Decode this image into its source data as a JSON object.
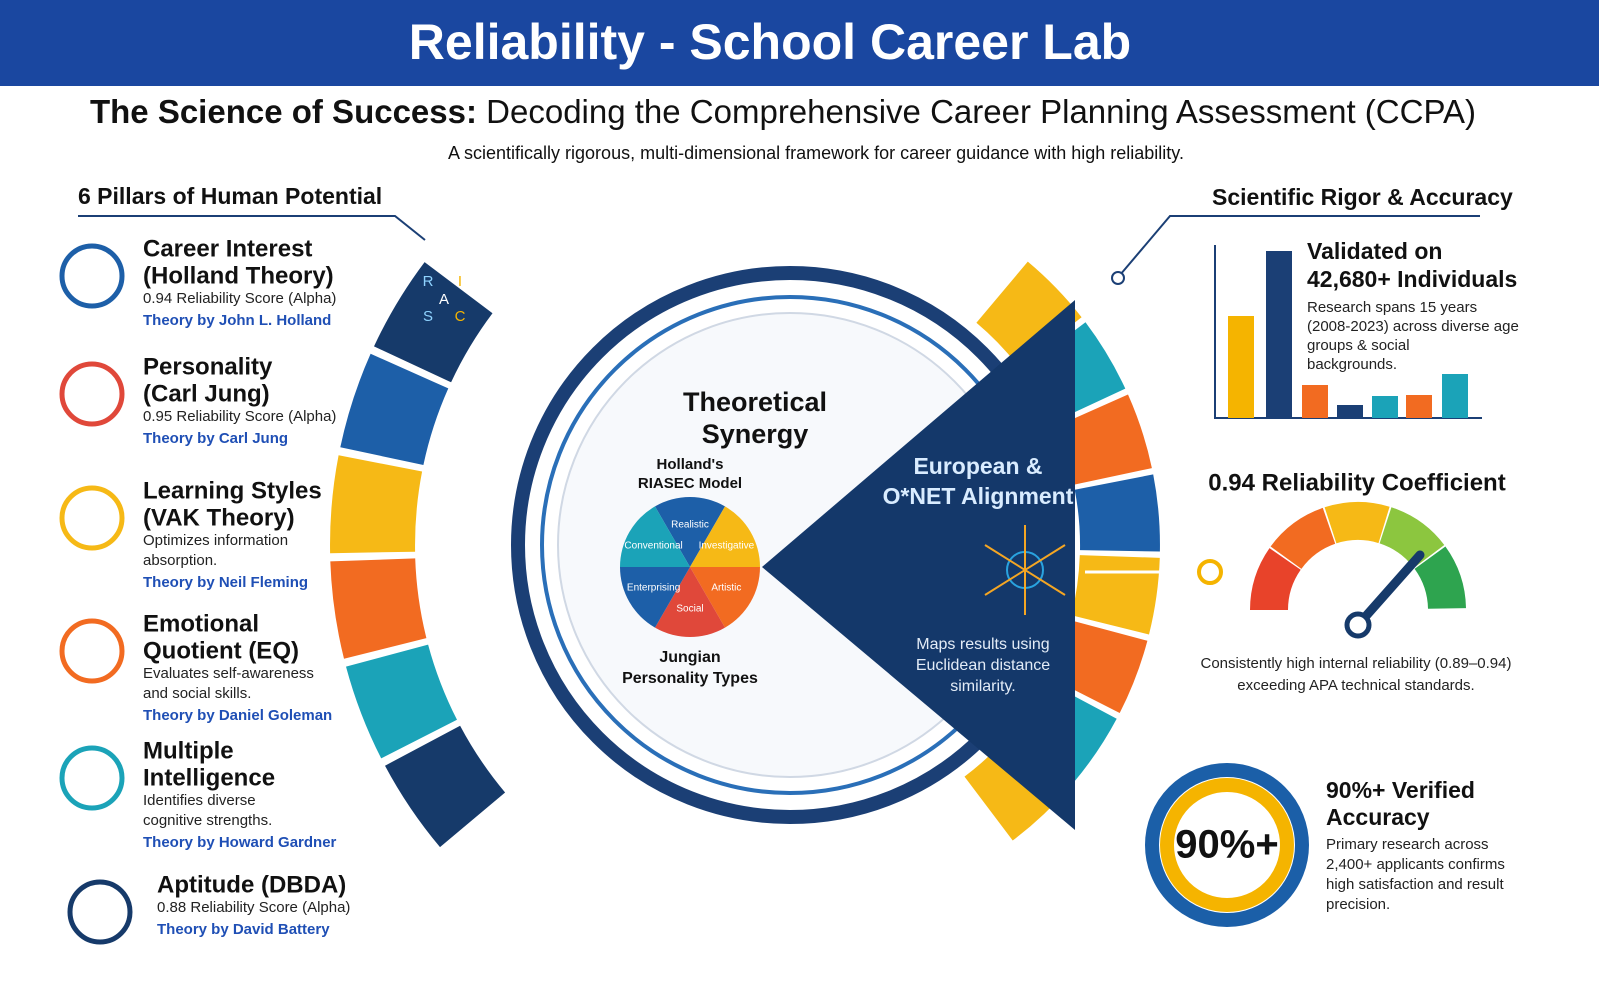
{
  "header": {
    "title": "Reliability - School Career Lab",
    "subtitle_bold": "The Science of Success:",
    "subtitle_rest": "Decoding the Comprehensive Career Planning Assessment (CCPA)",
    "tagline": "A scientifically rigorous, multi-dimensional framework for career guidance with high reliability."
  },
  "pillars": {
    "heading": "6 Pillars of Human Potential",
    "icon_letters": [
      "R",
      "I",
      "A",
      "S",
      "C"
    ],
    "items": [
      {
        "title": [
          "Career Interest",
          "(Holland Theory)"
        ],
        "detail": [
          "0.94 Reliability Score (Alpha)"
        ],
        "theory": "Theory by John L. Holland"
      },
      {
        "title": [
          "Personality",
          "(Carl Jung)"
        ],
        "detail": [
          "0.95 Reliability Score (Alpha)"
        ],
        "theory": "Theory by Carl Jung"
      },
      {
        "title": [
          "Learning Styles",
          "(VAK Theory)"
        ],
        "detail": [
          "Optimizes information",
          "absorption."
        ],
        "theory": "Theory by Neil Fleming"
      },
      {
        "title": [
          "Emotional",
          "Quotient (EQ)"
        ],
        "detail": [
          "Evaluates self-awareness",
          "and social skills."
        ],
        "theory": "Theory by Daniel Goleman"
      },
      {
        "title": [
          "Multiple",
          "Intelligence"
        ],
        "detail": [
          "Identifies diverse",
          "cognitive strengths."
        ],
        "theory": "Theory by Howard Gardner"
      },
      {
        "title": [
          "Aptitude (DBDA)"
        ],
        "detail": [
          "0.88 Reliability Score (Alpha)"
        ],
        "theory": "Theory by David Battery"
      }
    ]
  },
  "center": {
    "title": [
      "Theoretical",
      "Synergy"
    ],
    "riasec_title": [
      "Holland's",
      "RIASEC Model"
    ],
    "riasec": [
      "Realistic",
      "Investigative",
      "Artistic",
      "Social",
      "Enterprising",
      "Conventional"
    ],
    "jungian": [
      "Jungian",
      "Personality Types"
    ],
    "alignment": [
      "European &",
      "O*NET Alignment"
    ],
    "alignment_text": [
      "Maps results using",
      "Euclidean distance",
      "similarity."
    ]
  },
  "rigor": {
    "heading": "Scientific Rigor & Accuracy",
    "validated": [
      "Validated on",
      "42,680+ Individuals"
    ],
    "validated_text": [
      "Research spans 15 years",
      "(2008-2023) across diverse age",
      "groups & social",
      "backgrounds."
    ],
    "reliability_title": "0.94 Reliability Coefficient",
    "reliability_text": [
      "Consistently high internal reliability (0.89–0.94)",
      "exceeding APA technical standards."
    ],
    "accuracy_value": "90%+",
    "accuracy_title": [
      "90%+ Verified",
      "Accuracy"
    ],
    "accuracy_text": [
      "Primary research across",
      "2,400+ applicants confirms",
      "high satisfaction and result",
      "precision."
    ]
  }
}
